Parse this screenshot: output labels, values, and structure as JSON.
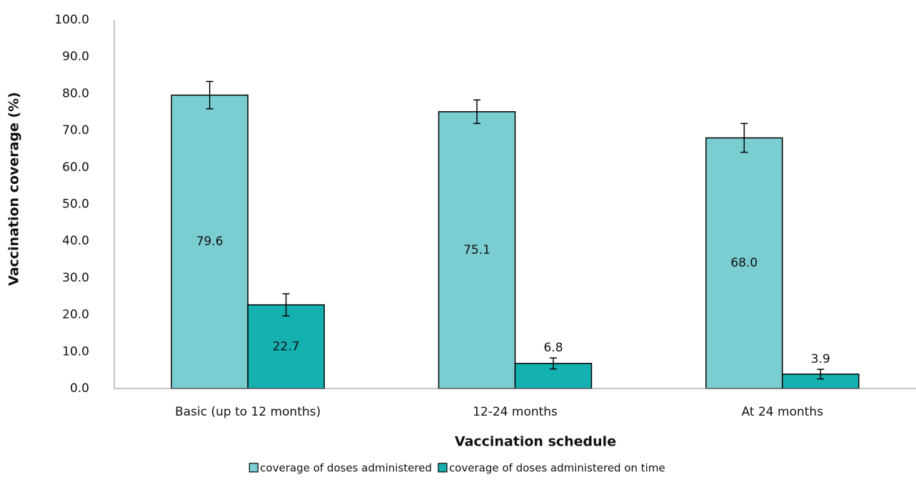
{
  "chart_data": {
    "type": "bar",
    "xlabel": "Vaccination schedule",
    "ylabel": "Vaccination coverage (%)",
    "categories": [
      "Basic (up to 12 months)",
      "12-24 months",
      "At 24 months"
    ],
    "series": [
      {
        "name": "coverage of doses administered",
        "color": "#7acdd0",
        "values": [
          79.6,
          75.1,
          68.0
        ],
        "value_labels": [
          "79.6",
          "75.1",
          "68.0"
        ],
        "errors": [
          3.7,
          3.2,
          3.9
        ]
      },
      {
        "name": "coverage of doses administered on time",
        "color": "#15b1b0",
        "values": [
          22.7,
          6.8,
          3.9
        ],
        "errors": [
          3.0,
          1.5,
          1.3
        ]
      }
    ],
    "ylim": [
      0,
      100
    ],
    "yticks": [
      {
        "value": 0,
        "label": "0.0"
      },
      {
        "value": 10,
        "label": "10.0"
      },
      {
        "value": 20,
        "label": "20.0"
      },
      {
        "value": 30,
        "label": "30.0"
      },
      {
        "value": 40,
        "label": "40.0"
      },
      {
        "value": 50,
        "label": "50.0"
      },
      {
        "value": 60,
        "label": "60.0"
      },
      {
        "value": 70,
        "label": "70.0"
      },
      {
        "value": 80,
        "label": "80.0"
      },
      {
        "value": 90,
        "label": "90.0"
      },
      {
        "value": 100,
        "label": "100.0"
      }
    ],
    "grid": false,
    "legend": "bottom"
  }
}
